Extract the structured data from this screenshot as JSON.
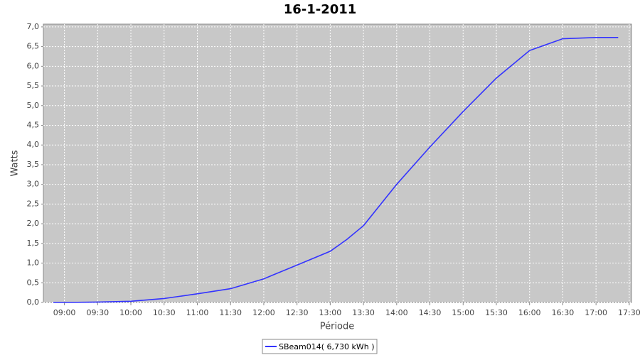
{
  "chart_data": {
    "type": "line",
    "title": "16-1-2011",
    "x_label": "Période",
    "y_label": "Watts",
    "x": [
      "08:50",
      "09:00",
      "09:30",
      "10:00",
      "10:30",
      "11:00",
      "11:30",
      "12:00",
      "12:30",
      "13:00",
      "13:15",
      "13:30",
      "14:00",
      "14:30",
      "15:00",
      "15:30",
      "16:00",
      "16:30",
      "17:00",
      "17:20"
    ],
    "series": [
      {
        "name": "SBeam014( 6,730 kWh )",
        "color": "#3333ff",
        "values": [
          0,
          0,
          0.01,
          0.03,
          0.1,
          0.22,
          0.35,
          0.6,
          0.95,
          1.3,
          1.6,
          1.95,
          3.0,
          3.95,
          4.85,
          5.7,
          6.4,
          6.7,
          6.73,
          6.73
        ]
      }
    ],
    "xlim": [
      "08:41",
      "17:32"
    ],
    "xticks": [
      "09:00",
      "09:30",
      "10:00",
      "10:30",
      "11:00",
      "11:30",
      "12:00",
      "12:30",
      "13:00",
      "13:30",
      "14:00",
      "14:30",
      "15:00",
      "15:30",
      "16:00",
      "16:30",
      "17:00",
      "17:30"
    ],
    "ylim": [
      0,
      7.07
    ],
    "yticks": [
      {
        "value": 0,
        "label": "0,0"
      },
      {
        "value": 0.5,
        "label": "0,5"
      },
      {
        "value": 1,
        "label": "1,0"
      },
      {
        "value": 1.5,
        "label": "1,5"
      },
      {
        "value": 2,
        "label": "2,0"
      },
      {
        "value": 2.5,
        "label": "2,5"
      },
      {
        "value": 3,
        "label": "3,0"
      },
      {
        "value": 3.5,
        "label": "3,5"
      },
      {
        "value": 4,
        "label": "4,0"
      },
      {
        "value": 4.5,
        "label": "4,5"
      },
      {
        "value": 5,
        "label": "5,0"
      },
      {
        "value": 5.5,
        "label": "5,5"
      },
      {
        "value": 6,
        "label": "6,0"
      },
      {
        "value": 6.5,
        "label": "6,5"
      },
      {
        "value": 7,
        "label": "7,0"
      }
    ],
    "grid": true,
    "legend": "bottom",
    "plot_background": "#c8c8c8"
  }
}
